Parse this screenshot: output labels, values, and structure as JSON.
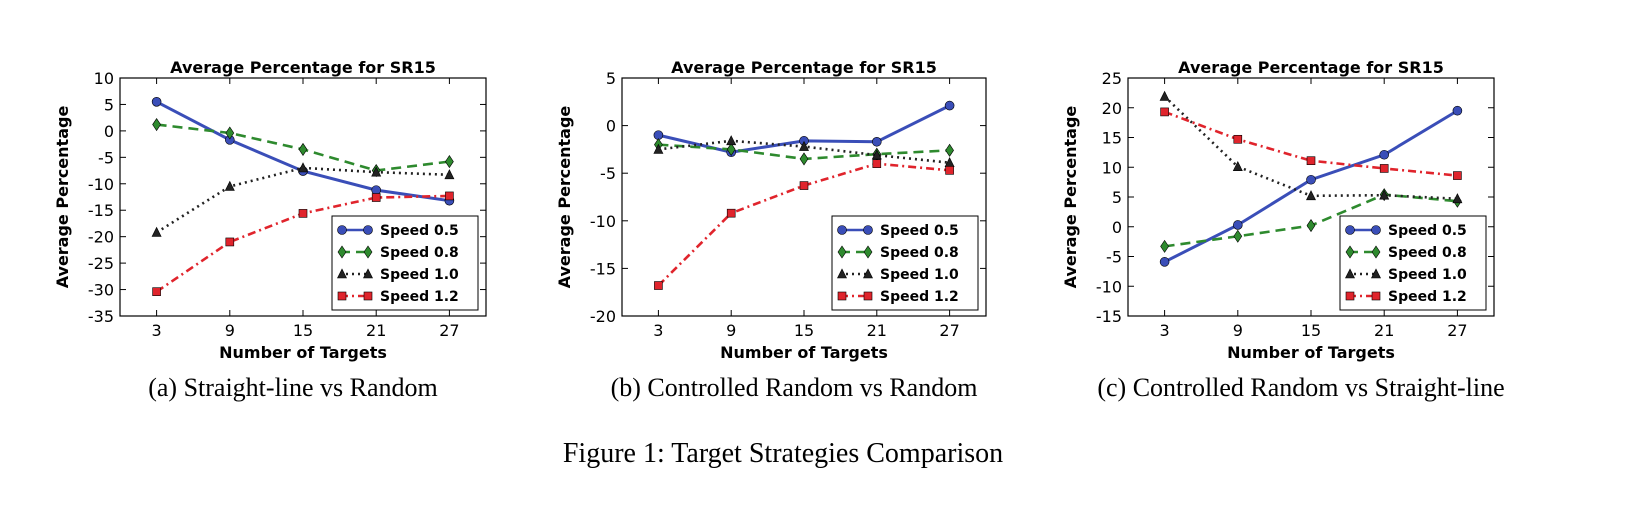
{
  "figure_caption": "Figure 1: Target Strategies Comparison",
  "series_styles": [
    {
      "color": "#3a4eb8",
      "dash": "",
      "marker": "circle"
    },
    {
      "color": "#2e8a2e",
      "dash": "10,6",
      "marker": "diamond"
    },
    {
      "color": "#222222",
      "dash": "2,4",
      "marker": "triangle"
    },
    {
      "color": "#e0242c",
      "dash": "8,4,2,4",
      "marker": "square"
    }
  ],
  "chart_data": [
    {
      "type": "line",
      "caption": "(a) Straight-line vs Random",
      "title": "Average Percentage for SR15",
      "xlabel": "Number of Targets",
      "ylabel": "Average Percentage",
      "x": [
        3,
        9,
        15,
        21,
        27
      ],
      "xlim": [
        0,
        30
      ],
      "ylim": [
        -35,
        10
      ],
      "yticks": [
        10,
        5,
        0,
        -5,
        -10,
        -15,
        -20,
        -25,
        -30,
        -35
      ],
      "legend_position": "lower-right",
      "series": [
        {
          "name": "Speed 0.5",
          "values": [
            5.5,
            -1.7,
            -7.6,
            -11.2,
            -13.2
          ]
        },
        {
          "name": "Speed 0.8",
          "values": [
            1.2,
            -0.4,
            -3.5,
            -7.5,
            -5.8
          ]
        },
        {
          "name": "Speed 1.0",
          "values": [
            -19.2,
            -10.5,
            -7.0,
            -7.8,
            -8.3
          ]
        },
        {
          "name": "Speed 1.2",
          "values": [
            -30.4,
            -21.0,
            -15.6,
            -12.6,
            -12.3
          ]
        }
      ]
    },
    {
      "type": "line",
      "caption": "(b) Controlled Random vs Random",
      "title": "Average Percentage for SR15",
      "xlabel": "Number of Targets",
      "ylabel": "Average Percentage",
      "x": [
        3,
        9,
        15,
        21,
        27
      ],
      "xlim": [
        0,
        30
      ],
      "ylim": [
        -20,
        5
      ],
      "yticks": [
        5,
        0,
        -5,
        -10,
        -15,
        -20
      ],
      "legend_position": "lower-right",
      "series": [
        {
          "name": "Speed 0.5",
          "values": [
            -1.0,
            -2.8,
            -1.6,
            -1.7,
            2.1
          ]
        },
        {
          "name": "Speed 0.8",
          "values": [
            -2.0,
            -2.5,
            -3.5,
            -3.0,
            -2.6
          ]
        },
        {
          "name": "Speed 1.0",
          "values": [
            -2.5,
            -1.6,
            -2.2,
            -3.1,
            -3.9
          ]
        },
        {
          "name": "Speed 1.2",
          "values": [
            -16.8,
            -9.2,
            -6.3,
            -4.0,
            -4.7
          ]
        }
      ]
    },
    {
      "type": "line",
      "caption": "(c) Controlled Random vs Straight-line",
      "title": "Average Percentage for SR15",
      "xlabel": "Number of Targets",
      "ylabel": "Average Percentage",
      "x": [
        3,
        9,
        15,
        21,
        27
      ],
      "xlim": [
        0,
        30
      ],
      "ylim": [
        -15,
        25
      ],
      "yticks": [
        25,
        20,
        15,
        10,
        5,
        0,
        -5,
        -10,
        -15
      ],
      "legend_position": "lower-right",
      "series": [
        {
          "name": "Speed 0.5",
          "values": [
            -5.9,
            0.3,
            7.9,
            12.1,
            19.5
          ]
        },
        {
          "name": "Speed 0.8",
          "values": [
            -3.3,
            -1.6,
            0.2,
            5.4,
            4.3
          ]
        },
        {
          "name": "Speed 1.0",
          "values": [
            21.9,
            10.1,
            5.2,
            5.3,
            4.7
          ]
        },
        {
          "name": "Speed 1.2",
          "values": [
            19.3,
            14.7,
            11.1,
            9.8,
            8.6
          ]
        }
      ]
    }
  ]
}
